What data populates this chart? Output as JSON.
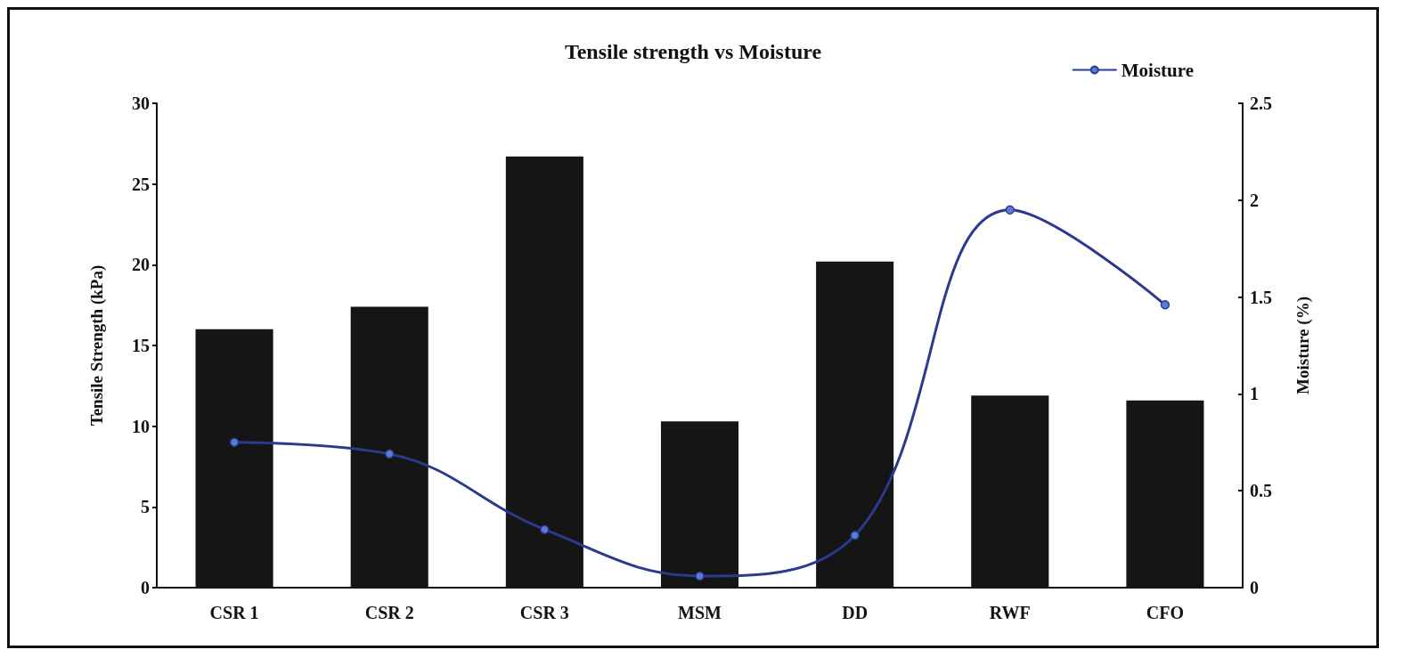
{
  "chart_data": {
    "type": "bar",
    "title": "Tensile strength vs Moisture",
    "ylabel": "Tensile Strength (kPa)",
    "y2label": "Moisture (%)",
    "categories": [
      "CSR 1",
      "CSR 2",
      "CSR 3",
      "MSM",
      "DD",
      "RWF",
      "CFO"
    ],
    "series": [
      {
        "color": "#151515",
        "values": [
          16.0,
          17.4,
          26.7,
          10.3,
          20.2,
          11.9,
          11.6
        ]
      },
      {
        "type": "line",
        "name": "Moisture",
        "color": "#2b3a8f",
        "axis": "y2",
        "marker": "circle",
        "values": [
          0.75,
          0.69,
          0.3,
          0.06,
          0.27,
          1.95,
          1.46
        ]
      }
    ],
    "ylim": [
      0,
      30
    ],
    "yticks": [
      0,
      5,
      10,
      15,
      20,
      25,
      30
    ],
    "y2lim": [
      0,
      2.5
    ],
    "y2ticks": [
      0,
      0.5,
      1,
      1.5,
      2,
      2.5
    ],
    "grid": false,
    "legend": "top right"
  }
}
